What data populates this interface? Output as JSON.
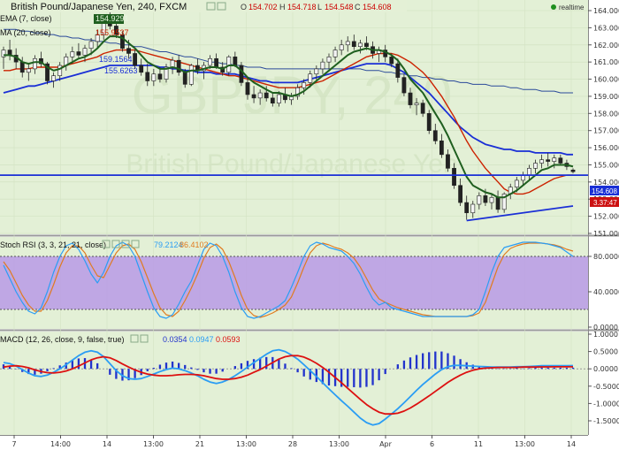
{
  "header": {
    "title": "British Pound/Japanese Yen, 240, FXCM",
    "ohlc_labels": [
      "O",
      "H",
      "L",
      "C"
    ],
    "ohlc_values": [
      "154.702",
      "154.718",
      "154.548",
      "154.608"
    ],
    "realtime_label": "realtime"
  },
  "watermark": {
    "symbol": "GBPJPY, 240",
    "name": "British Pound/Japanese Yen"
  },
  "legend": {
    "ema7": "EMA (7, close)",
    "ema7_value": "154.9291",
    "ma20": "MA (20, close)",
    "ma20_value": "155.9537",
    "ma_row3_value": "159.1564",
    "ma_row4_value": "155.6263"
  },
  "price_badges": {
    "last": "154.608",
    "second": "3.37:47"
  },
  "stoch": {
    "label": "Stoch RSI (3, 3, 21, 21, close)",
    "k_value": "79.2124",
    "d_value": "86.4102"
  },
  "macd": {
    "label": "MACD (12, 26, close, 9, false, true)",
    "hist_value": "0.0354",
    "macd_value": "0.0947",
    "signal_value": "0.0593"
  },
  "colors": {
    "background": "#e3f0d6",
    "candle_up": "#2a7a2a",
    "candle_down": "#8b0000",
    "ema7": "#1f5f1f",
    "ma20": "#cc2200",
    "ma50": "#1a2fd6",
    "ma_long": "#2b4a9a",
    "hline": "#1a2fd6",
    "trendline": "#1a2fd6",
    "stoch_band": "#b89ae6",
    "stoch_k": "#2a9df4",
    "stoch_d": "#e07b20",
    "macd_hist": "#2233cc",
    "macd_line": "#2a9df4",
    "signal_line": "#dd1111"
  },
  "chart_data": {
    "type": "candlestick",
    "x_tick_labels": [
      "7",
      "14:00",
      "14",
      "13:00",
      "21",
      "13:00",
      "28",
      "13:00",
      "Apr",
      "6",
      "11",
      "13:00",
      "14"
    ],
    "price_axis": {
      "ticks": [
        "164.000",
        "163.000",
        "162.000",
        "161.000",
        "160.000",
        "159.000",
        "158.000",
        "157.000",
        "156.000",
        "155.000",
        "154.000",
        "153.000",
        "152.000",
        "151.000"
      ],
      "ylim": [
        151,
        164.3
      ]
    },
    "candles_ohlc": [
      [
        161.3,
        161.9,
        160.6,
        161.7
      ],
      [
        161.7,
        162.3,
        161.1,
        161.4
      ],
      [
        161.4,
        161.8,
        160.6,
        161.0
      ],
      [
        161.0,
        161.3,
        160.1,
        160.4
      ],
      [
        160.4,
        160.9,
        159.9,
        160.6
      ],
      [
        160.6,
        161.4,
        160.3,
        161.2
      ],
      [
        161.2,
        161.6,
        160.7,
        160.9
      ],
      [
        160.9,
        161.0,
        159.7,
        159.9
      ],
      [
        159.9,
        160.4,
        159.5,
        160.2
      ],
      [
        160.2,
        161.0,
        159.9,
        160.8
      ],
      [
        160.8,
        161.5,
        160.5,
        161.3
      ],
      [
        161.3,
        161.9,
        160.9,
        161.6
      ],
      [
        161.6,
        162.1,
        161.2,
        161.4
      ],
      [
        161.4,
        162.0,
        161.0,
        161.8
      ],
      [
        161.8,
        162.4,
        161.4,
        162.2
      ],
      [
        162.2,
        162.9,
        161.8,
        162.6
      ],
      [
        162.6,
        163.6,
        162.3,
        163.3
      ],
      [
        163.3,
        163.9,
        162.9,
        163.1
      ],
      [
        163.1,
        163.4,
        162.4,
        162.6
      ],
      [
        162.6,
        162.8,
        161.6,
        161.8
      ],
      [
        161.8,
        162.3,
        161.2,
        161.5
      ],
      [
        161.5,
        161.7,
        160.6,
        160.8
      ],
      [
        160.8,
        161.2,
        160.2,
        160.4
      ],
      [
        160.4,
        160.9,
        159.6,
        159.9
      ],
      [
        159.9,
        160.6,
        159.6,
        160.3
      ],
      [
        160.3,
        160.7,
        159.8,
        160.0
      ],
      [
        160.0,
        160.9,
        159.8,
        160.7
      ],
      [
        160.7,
        161.3,
        160.3,
        161.1
      ],
      [
        161.1,
        161.4,
        160.2,
        160.4
      ],
      [
        160.4,
        160.6,
        159.5,
        159.7
      ],
      [
        159.7,
        160.9,
        159.6,
        160.8
      ],
      [
        160.8,
        161.2,
        160.3,
        160.5
      ],
      [
        160.5,
        161.0,
        160.0,
        160.8
      ],
      [
        160.8,
        161.4,
        160.6,
        161.2
      ],
      [
        161.2,
        161.5,
        160.6,
        160.7
      ],
      [
        160.7,
        161.0,
        160.2,
        160.4
      ],
      [
        160.4,
        161.4,
        160.2,
        161.3
      ],
      [
        161.3,
        161.6,
        160.7,
        160.8
      ],
      [
        160.8,
        161.0,
        159.6,
        159.8
      ],
      [
        159.8,
        160.1,
        158.8,
        159.1
      ],
      [
        159.1,
        159.6,
        158.6,
        158.9
      ],
      [
        158.9,
        159.4,
        158.5,
        159.2
      ],
      [
        159.2,
        159.6,
        158.7,
        158.9
      ],
      [
        158.9,
        159.2,
        158.4,
        158.6
      ],
      [
        158.6,
        159.3,
        158.4,
        159.1
      ],
      [
        159.1,
        159.5,
        158.6,
        158.8
      ],
      [
        158.8,
        159.2,
        158.5,
        159.0
      ],
      [
        159.0,
        159.7,
        158.8,
        159.5
      ],
      [
        159.5,
        160.0,
        159.1,
        159.8
      ],
      [
        159.8,
        160.5,
        159.5,
        160.3
      ],
      [
        160.3,
        160.8,
        159.9,
        160.6
      ],
      [
        160.6,
        161.2,
        160.3,
        161.0
      ],
      [
        161.0,
        161.5,
        160.6,
        161.3
      ],
      [
        161.3,
        161.9,
        161.0,
        161.7
      ],
      [
        161.7,
        162.3,
        161.4,
        162.0
      ],
      [
        162.0,
        162.5,
        161.6,
        162.2
      ],
      [
        162.2,
        162.6,
        161.7,
        161.9
      ],
      [
        161.9,
        162.3,
        161.5,
        162.1
      ],
      [
        162.1,
        162.5,
        161.7,
        161.9
      ],
      [
        161.9,
        162.2,
        161.2,
        161.5
      ],
      [
        161.5,
        161.9,
        161.0,
        161.7
      ],
      [
        161.7,
        162.0,
        161.0,
        161.3
      ],
      [
        161.3,
        161.5,
        160.7,
        160.9
      ],
      [
        160.9,
        161.2,
        159.8,
        160.1
      ],
      [
        160.1,
        160.3,
        159.0,
        159.2
      ],
      [
        159.2,
        159.5,
        158.3,
        158.5
      ],
      [
        158.5,
        158.9,
        157.9,
        158.6
      ],
      [
        158.6,
        158.8,
        157.8,
        158.0
      ],
      [
        158.0,
        158.2,
        156.8,
        157.0
      ],
      [
        157.0,
        157.4,
        156.2,
        156.4
      ],
      [
        156.4,
        156.8,
        155.4,
        155.6
      ],
      [
        155.6,
        155.9,
        154.6,
        154.8
      ],
      [
        154.8,
        155.1,
        153.6,
        153.8
      ],
      [
        153.8,
        154.2,
        152.6,
        152.8
      ],
      [
        152.8,
        153.2,
        151.8,
        152.2
      ],
      [
        152.2,
        152.9,
        151.9,
        152.7
      ],
      [
        152.7,
        153.4,
        152.4,
        153.2
      ],
      [
        153.2,
        153.6,
        152.6,
        152.8
      ],
      [
        152.8,
        153.3,
        152.4,
        153.1
      ],
      [
        153.1,
        153.5,
        152.2,
        152.4
      ],
      [
        152.4,
        153.4,
        152.2,
        153.3
      ],
      [
        153.3,
        153.9,
        153.0,
        153.7
      ],
      [
        153.7,
        154.3,
        153.4,
        154.1
      ],
      [
        154.1,
        154.6,
        153.8,
        154.4
      ],
      [
        154.4,
        155.0,
        154.1,
        154.8
      ],
      [
        154.8,
        155.3,
        154.5,
        155.1
      ],
      [
        155.1,
        155.6,
        154.8,
        155.3
      ],
      [
        155.3,
        155.7,
        154.9,
        155.2
      ],
      [
        155.2,
        155.6,
        154.8,
        155.4
      ],
      [
        155.4,
        155.6,
        155.0,
        155.1
      ],
      [
        155.1,
        155.3,
        154.7,
        154.9
      ],
      [
        154.7,
        154.8,
        154.5,
        154.6
      ]
    ],
    "ema7_values": [
      161.4,
      161.4,
      161.3,
      161.0,
      160.9,
      161.0,
      161.0,
      160.7,
      160.5,
      160.6,
      160.8,
      161.0,
      161.2,
      161.3,
      161.5,
      161.8,
      162.2,
      162.5,
      162.5,
      162.4,
      162.1,
      161.8,
      161.4,
      161.0,
      160.8,
      160.6,
      160.6,
      160.7,
      160.6,
      160.4,
      160.5,
      160.5,
      160.6,
      160.7,
      160.7,
      160.6,
      160.8,
      160.8,
      160.5,
      160.1,
      159.8,
      159.6,
      159.4,
      159.2,
      159.2,
      159.1,
      159.0,
      159.1,
      159.3,
      159.6,
      159.9,
      160.2,
      160.5,
      160.8,
      161.1,
      161.4,
      161.6,
      161.7,
      161.8,
      161.7,
      161.7,
      161.6,
      161.4,
      161.1,
      160.6,
      160.0,
      159.6,
      159.2,
      158.6,
      158.0,
      157.4,
      156.7,
      155.9,
      155.1,
      154.3,
      153.8,
      153.6,
      153.4,
      153.3,
      153.1,
      153.1,
      153.3,
      153.5,
      153.8,
      154.1,
      154.4,
      154.7,
      154.8,
      155.0,
      155.0,
      155.0,
      154.9
    ],
    "ma20_values": [
      160.5,
      160.5,
      160.6,
      160.6,
      160.6,
      160.7,
      160.7,
      160.7,
      160.7,
      160.7,
      160.8,
      160.9,
      161.0,
      161.1,
      161.2,
      161.3,
      161.5,
      161.6,
      161.7,
      161.7,
      161.7,
      161.7,
      161.6,
      161.5,
      161.4,
      161.3,
      161.2,
      161.1,
      161.0,
      160.9,
      160.8,
      160.7,
      160.6,
      160.5,
      160.4,
      160.3,
      160.2,
      160.2,
      160.1,
      160.0,
      159.9,
      159.8,
      159.7,
      159.6,
      159.5,
      159.5,
      159.5,
      159.5,
      159.6,
      159.7,
      159.8,
      159.9,
      160.1,
      160.3,
      160.5,
      160.7,
      160.9,
      161.1,
      161.3,
      161.4,
      161.5,
      161.5,
      161.5,
      161.4,
      161.2,
      161.0,
      160.7,
      160.4,
      160.0,
      159.5,
      159.0,
      158.4,
      157.8,
      157.1,
      156.4,
      155.8,
      155.3,
      154.8,
      154.4,
      154.0,
      153.6,
      153.4,
      153.3,
      153.3,
      153.4,
      153.6,
      153.8,
      154.0,
      154.2,
      154.3,
      154.4,
      154.4
    ],
    "ma50_values": [
      159.2,
      159.3,
      159.4,
      159.5,
      159.6,
      159.6,
      159.7,
      159.8,
      159.9,
      160.0,
      160.1,
      160.2,
      160.3,
      160.4,
      160.5,
      160.6,
      160.7,
      160.8,
      160.8,
      160.8,
      160.8,
      160.8,
      160.8,
      160.8,
      160.8,
      160.7,
      160.7,
      160.6,
      160.6,
      160.5,
      160.5,
      160.4,
      160.4,
      160.4,
      160.3,
      160.3,
      160.3,
      160.3,
      160.2,
      160.1,
      160.0,
      159.9,
      159.9,
      159.8,
      159.8,
      159.8,
      159.8,
      159.8,
      159.9,
      160.0,
      160.1,
      160.2,
      160.3,
      160.4,
      160.5,
      160.6,
      160.7,
      160.8,
      160.9,
      160.9,
      160.9,
      160.9,
      160.8,
      160.6,
      160.4,
      160.1,
      159.8,
      159.5,
      159.2,
      158.8,
      158.4,
      158.0,
      157.6,
      157.2,
      156.9,
      156.6,
      156.4,
      156.2,
      156.1,
      156.0,
      155.9,
      155.9,
      155.8,
      155.8,
      155.8,
      155.7,
      155.7,
      155.7,
      155.7,
      155.7,
      155.6,
      155.6
    ],
    "ma_long_values": [
      162.9,
      162.9,
      162.9,
      162.8,
      162.8,
      162.7,
      162.7,
      162.6,
      162.6,
      162.5,
      162.5,
      162.4,
      162.4,
      162.3,
      162.3,
      162.2,
      162.2,
      162.1,
      162.1,
      162.0,
      162.0,
      161.9,
      161.9,
      161.8,
      161.7,
      161.6,
      161.6,
      161.5,
      161.4,
      161.3,
      161.3,
      161.2,
      161.1,
      161.0,
      161.0,
      160.9,
      160.9,
      160.8,
      160.8,
      160.7,
      160.7,
      160.7,
      160.6,
      160.6,
      160.6,
      160.6,
      160.6,
      160.6,
      160.6,
      160.6,
      160.6,
      160.6,
      160.6,
      160.6,
      160.6,
      160.6,
      160.6,
      160.6,
      160.5,
      160.5,
      160.5,
      160.4,
      160.4,
      160.3,
      160.3,
      160.2,
      160.2,
      160.1,
      160.1,
      160.0,
      160.0,
      159.9,
      159.9,
      159.8,
      159.8,
      159.7,
      159.7,
      159.7,
      159.6,
      159.6,
      159.6,
      159.5,
      159.5,
      159.4,
      159.4,
      159.4,
      159.3,
      159.3,
      159.3,
      159.2,
      159.2,
      159.2
    ],
    "horizontal_line_price": 154.4,
    "trendline": {
      "from": [
        74,
        151.75
      ],
      "to": [
        91,
        152.6
      ]
    },
    "stoch_axis": {
      "ticks": [
        "80.0000",
        "40.0000",
        "0.0000"
      ],
      "ylim": [
        0,
        100
      ],
      "band": [
        20,
        80
      ]
    },
    "stoch_k_values": [
      70,
      55,
      40,
      28,
      18,
      15,
      22,
      40,
      62,
      80,
      92,
      95,
      88,
      75,
      60,
      50,
      62,
      80,
      92,
      96,
      92,
      80,
      60,
      40,
      22,
      12,
      10,
      14,
      26,
      40,
      52,
      70,
      88,
      95,
      92,
      80,
      62,
      40,
      22,
      12,
      10,
      12,
      16,
      20,
      24,
      30,
      45,
      62,
      80,
      92,
      96,
      94,
      90,
      88,
      86,
      80,
      72,
      60,
      45,
      32,
      25,
      28,
      22,
      20,
      18,
      16,
      14,
      12,
      12,
      12,
      12,
      12,
      12,
      12,
      12,
      14,
      20,
      40,
      62,
      80,
      90,
      92,
      94,
      96,
      96,
      96,
      95,
      94,
      92,
      90,
      85,
      80
    ],
    "stoch_d_values": [
      74,
      64,
      50,
      36,
      25,
      18,
      18,
      30,
      48,
      68,
      84,
      92,
      92,
      84,
      70,
      58,
      56,
      70,
      84,
      92,
      94,
      88,
      74,
      56,
      38,
      22,
      14,
      12,
      18,
      30,
      44,
      60,
      78,
      90,
      94,
      88,
      74,
      56,
      36,
      20,
      13,
      11,
      13,
      16,
      20,
      25,
      34,
      50,
      68,
      84,
      92,
      95,
      93,
      90,
      88,
      84,
      78,
      68,
      55,
      42,
      32,
      28,
      25,
      22,
      20,
      18,
      16,
      14,
      13,
      12,
      12,
      12,
      12,
      12,
      12,
      13,
      16,
      28,
      48,
      68,
      82,
      89,
      92,
      94,
      95,
      95,
      95,
      94,
      93,
      91,
      88,
      86
    ],
    "macd_axis": {
      "ticks": [
        "1.0000",
        "0.5000",
        "0.0000",
        "-0.5000",
        "-1.0000",
        "-1.5000"
      ],
      "ylim": [
        -1.75,
        1.1
      ]
    },
    "macd_values": [
      0.18,
      0.15,
      0.08,
      -0.02,
      -0.12,
      -0.2,
      -0.22,
      -0.18,
      -0.1,
      0.0,
      0.12,
      0.25,
      0.38,
      0.48,
      0.52,
      0.48,
      0.35,
      0.15,
      -0.05,
      -0.2,
      -0.28,
      -0.3,
      -0.28,
      -0.22,
      -0.15,
      -0.08,
      -0.02,
      0.02,
      0.0,
      -0.05,
      -0.12,
      -0.2,
      -0.3,
      -0.38,
      -0.42,
      -0.38,
      -0.3,
      -0.2,
      -0.08,
      0.05,
      0.18,
      0.3,
      0.42,
      0.52,
      0.55,
      0.5,
      0.4,
      0.28,
      0.12,
      -0.05,
      -0.22,
      -0.4,
      -0.58,
      -0.75,
      -0.92,
      -1.08,
      -1.25,
      -1.42,
      -1.55,
      -1.62,
      -1.58,
      -1.45,
      -1.3,
      -1.15,
      -0.98,
      -0.8,
      -0.62,
      -0.45,
      -0.3,
      -0.15,
      -0.02,
      0.06,
      0.1,
      0.1,
      0.09,
      0.08,
      0.07,
      0.06,
      0.05,
      0.05,
      0.05,
      0.05,
      0.06,
      0.06,
      0.07,
      0.08,
      0.09,
      0.09,
      0.09,
      0.09,
      0.09,
      0.095
    ],
    "signal_values": [
      0.05,
      0.08,
      0.09,
      0.07,
      0.03,
      -0.03,
      -0.08,
      -0.11,
      -0.12,
      -0.1,
      -0.06,
      0.0,
      0.08,
      0.17,
      0.26,
      0.32,
      0.35,
      0.32,
      0.24,
      0.14,
      0.05,
      -0.03,
      -0.1,
      -0.15,
      -0.18,
      -0.2,
      -0.2,
      -0.19,
      -0.17,
      -0.16,
      -0.16,
      -0.17,
      -0.2,
      -0.24,
      -0.28,
      -0.3,
      -0.3,
      -0.28,
      -0.24,
      -0.18,
      -0.1,
      -0.02,
      0.08,
      0.18,
      0.28,
      0.35,
      0.38,
      0.38,
      0.34,
      0.26,
      0.16,
      0.04,
      -0.1,
      -0.25,
      -0.4,
      -0.56,
      -0.72,
      -0.88,
      -1.03,
      -1.15,
      -1.25,
      -1.3,
      -1.3,
      -1.28,
      -1.22,
      -1.13,
      -1.02,
      -0.9,
      -0.78,
      -0.65,
      -0.52,
      -0.39,
      -0.28,
      -0.18,
      -0.1,
      -0.04,
      0.0,
      0.02,
      0.03,
      0.04,
      0.04,
      0.04,
      0.04,
      0.05,
      0.05,
      0.05,
      0.055,
      0.057,
      0.058,
      0.059,
      0.059,
      0.0593
    ],
    "hist_values": [
      0.13,
      0.07,
      -0.01,
      -0.09,
      -0.15,
      -0.17,
      -0.14,
      -0.07,
      0.02,
      0.1,
      0.18,
      0.25,
      0.3,
      0.31,
      0.26,
      0.16,
      0.0,
      -0.17,
      -0.29,
      -0.34,
      -0.33,
      -0.27,
      -0.18,
      -0.07,
      0.03,
      0.12,
      0.18,
      0.21,
      0.17,
      0.11,
      0.04,
      -0.03,
      -0.1,
      -0.14,
      -0.14,
      -0.08,
      0.0,
      0.08,
      0.16,
      0.23,
      0.28,
      0.32,
      0.34,
      0.34,
      0.27,
      0.15,
      0.02,
      -0.1,
      -0.22,
      -0.31,
      -0.38,
      -0.44,
      -0.48,
      -0.5,
      -0.52,
      -0.52,
      -0.53,
      -0.54,
      -0.52,
      -0.47,
      -0.33,
      -0.15,
      0.0,
      0.13,
      0.24,
      0.33,
      0.4,
      0.45,
      0.48,
      0.5,
      0.5,
      0.45,
      0.38,
      0.28,
      0.19,
      0.12,
      0.07,
      0.04,
      0.02,
      0.01,
      0.01,
      0.01,
      0.02,
      0.01,
      0.02,
      0.03,
      0.035,
      0.033,
      0.032,
      0.031,
      0.031,
      0.0354
    ]
  }
}
